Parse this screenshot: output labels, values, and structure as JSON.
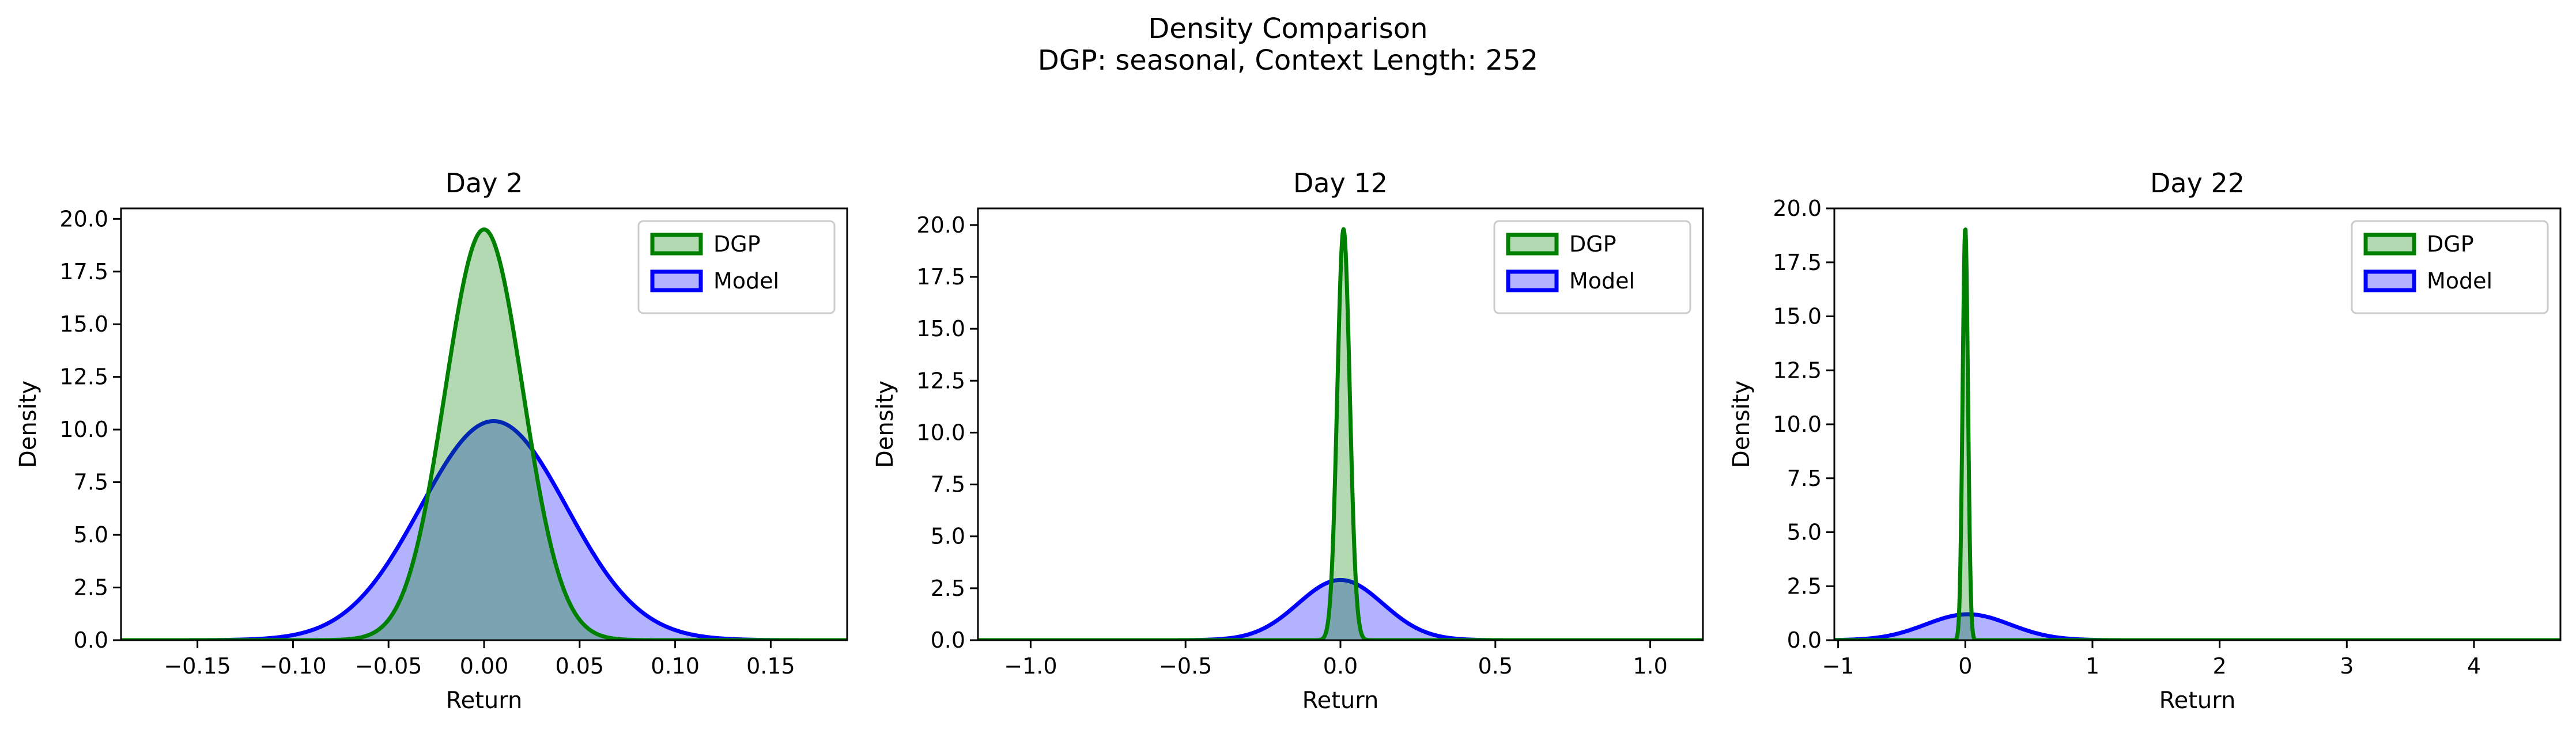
{
  "figure": {
    "title": "Density Comparison",
    "subtitle": "DGP: seasonal, Context Length: 252"
  },
  "colors": {
    "dgp_line": "#008000",
    "dgp_fill": "#b2d9b2",
    "model_line": "#0000ff",
    "model_fill": "#b2b2ff",
    "overlap_fill": "#7f9ccc"
  },
  "chart_data": [
    {
      "type": "area",
      "title": "Day 2",
      "xlabel": "Return",
      "ylabel": "Density",
      "xlim": [
        -0.19,
        0.19
      ],
      "ylim": [
        0,
        20.5
      ],
      "xticks": [
        -0.15,
        -0.1,
        -0.05,
        0.0,
        0.05,
        0.1,
        0.15
      ],
      "xtick_labels": [
        "−0.15",
        "−0.10",
        "−0.05",
        "0.00",
        "0.05",
        "0.10",
        "0.15"
      ],
      "yticks": [
        0,
        2.5,
        5,
        7.5,
        10,
        12.5,
        15,
        17.5,
        20
      ],
      "ytick_labels": [
        "0.0",
        "2.5",
        "5.0",
        "7.5",
        "10.0",
        "12.5",
        "15.0",
        "17.5",
        "20.0"
      ],
      "legend": "top-right",
      "series": [
        {
          "name": "DGP",
          "distribution": "normal",
          "mean": 0.0,
          "std": 0.0204,
          "peak_density": 19.5
        },
        {
          "name": "Model",
          "distribution": "normal",
          "mean": 0.005,
          "std": 0.0383,
          "peak_density": 10.4
        }
      ]
    },
    {
      "type": "area",
      "title": "Day 12",
      "xlabel": "Return",
      "ylabel": "Density",
      "xlim": [
        -1.17,
        1.17
      ],
      "ylim": [
        0,
        20.8
      ],
      "xticks": [
        -1.0,
        -0.5,
        0.0,
        0.5,
        1.0
      ],
      "xtick_labels": [
        "−1.0",
        "−0.5",
        "0.0",
        "0.5",
        "1.0"
      ],
      "yticks": [
        0,
        2.5,
        5,
        7.5,
        10,
        12.5,
        15,
        17.5,
        20
      ],
      "ytick_labels": [
        "0.0",
        "2.5",
        "5.0",
        "7.5",
        "10.0",
        "12.5",
        "15.0",
        "17.5",
        "20.0"
      ],
      "legend": "top-right",
      "series": [
        {
          "name": "DGP",
          "distribution": "normal",
          "mean": 0.01,
          "std": 0.0201,
          "peak_density": 19.8
        },
        {
          "name": "Model",
          "distribution": "normal",
          "mean": 0.0,
          "std": 0.137,
          "peak_density": 2.9
        }
      ]
    },
    {
      "type": "area",
      "title": "Day 22",
      "xlabel": "Return",
      "ylabel": "Density",
      "xlim": [
        -1.03,
        4.68
      ],
      "ylim": [
        0,
        20.0
      ],
      "xticks": [
        -1,
        0,
        1,
        2,
        3,
        4
      ],
      "xtick_labels": [
        "−1",
        "0",
        "1",
        "2",
        "3",
        "4"
      ],
      "yticks": [
        0,
        2.5,
        5,
        7.5,
        10,
        12.5,
        15,
        17.5,
        20
      ],
      "ytick_labels": [
        "0.0",
        "2.5",
        "5.0",
        "7.5",
        "10.0",
        "12.5",
        "15.0",
        "17.5",
        "20.0"
      ],
      "legend": "top-right",
      "series": [
        {
          "name": "DGP",
          "distribution": "normal",
          "mean": 0.0,
          "std": 0.021,
          "peak_density": 19.1
        },
        {
          "name": "Model",
          "distribution": "normal",
          "mean": 0.02,
          "std": 0.332,
          "peak_density": 1.2
        }
      ]
    }
  ]
}
